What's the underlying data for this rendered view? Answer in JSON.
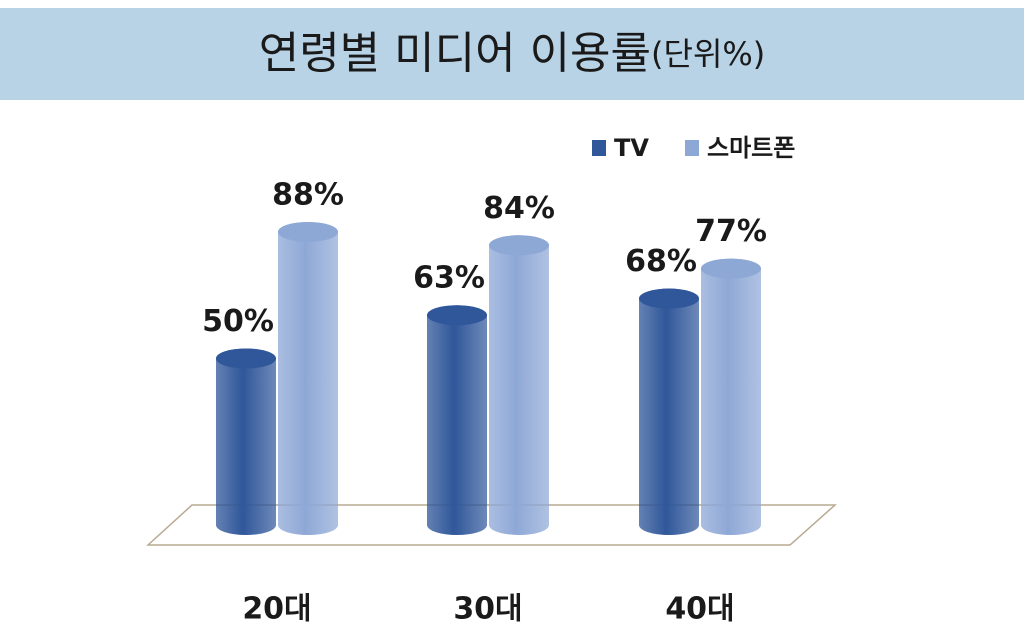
{
  "chart_data": {
    "type": "bar3d",
    "title": "연령별 미디어 이용률",
    "subtitle": "(단위%)",
    "categories": [
      "20대",
      "30대",
      "40대"
    ],
    "series": [
      {
        "name": "TV",
        "color": "#30579a",
        "values": [
          50,
          63,
          68
        ],
        "value_labels": [
          "50%",
          "63%",
          "68%"
        ]
      },
      {
        "name": "스마트폰",
        "color": "#8ea8d6",
        "values": [
          88,
          84,
          77
        ],
        "value_labels": [
          "88%",
          "84%",
          "77%"
        ]
      }
    ],
    "legend": "top-right"
  }
}
